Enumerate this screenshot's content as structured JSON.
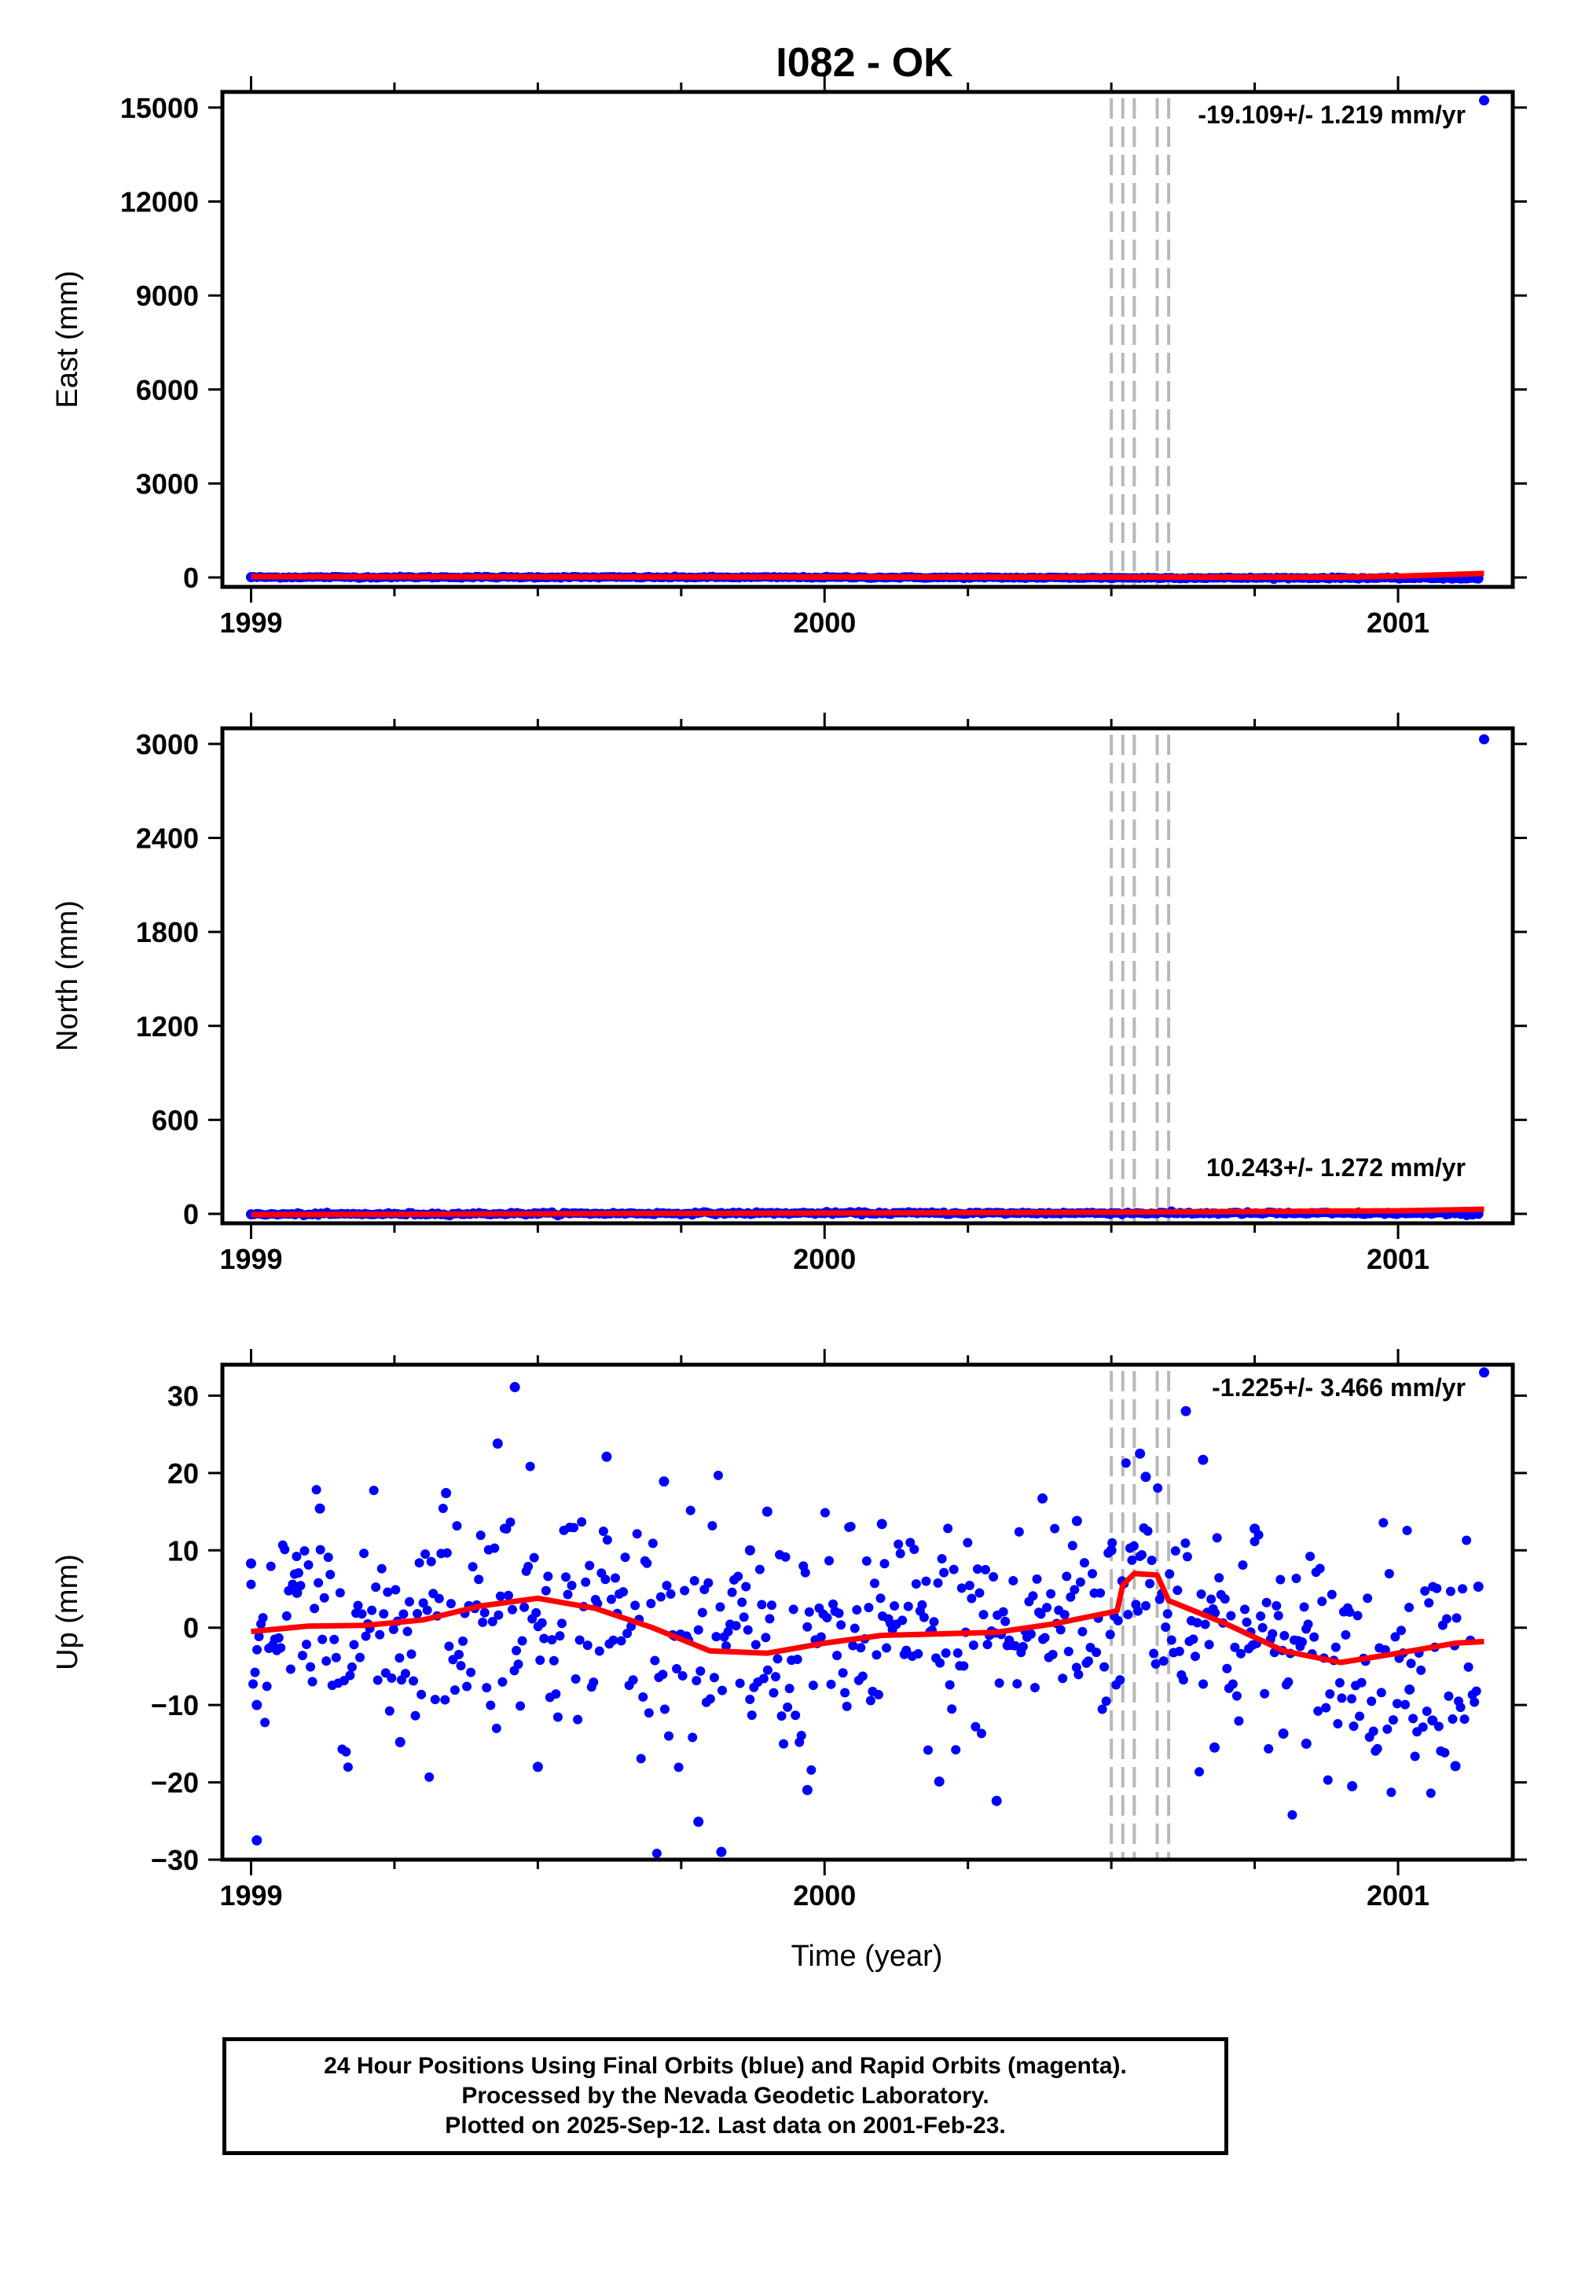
{
  "title": "I082 - OK",
  "footer": {
    "line1": "24 Hour Positions Using Final Orbits (blue) and Rapid Orbits (magenta).",
    "line2": "Processed by the Nevada Geodetic Laboratory.",
    "line3": "Plotted on 2025-Sep-12. Last data on 2001-Feb-23."
  },
  "colors": {
    "points": "#0000ff",
    "model": "#ff0000",
    "steps": "#b8b8b8",
    "frame": "#000000"
  },
  "chart_data": [
    {
      "type": "scatter",
      "title": "I082 - OK",
      "ylabel": "East (mm)",
      "xlabel": "",
      "xlim": [
        1998.95,
        2001.2
      ],
      "ylim": [
        -300,
        15500
      ],
      "xticks": [
        1999,
        2000,
        2001
      ],
      "yticks": [
        0,
        3000,
        6000,
        9000,
        12000,
        15000
      ],
      "rate_label": "-19.109+/- 1.219 mm/yr",
      "steps": [
        2000.5,
        2000.52,
        2000.54,
        2000.58,
        2000.6
      ],
      "model": {
        "x": [
          1999.0,
          1999.5,
          2000.0,
          2000.5,
          2000.9,
          2001.0,
          2001.15
        ],
        "y": [
          25,
          20,
          15,
          10,
          10,
          40,
          130
        ]
      },
      "points": {
        "x": [
          1999.0,
          1999.5,
          2000.0,
          2000.5,
          2000.9,
          2001.0,
          2001.14,
          2001.15
        ],
        "y": [
          10,
          10,
          5,
          -10,
          -15,
          -20,
          -30,
          15230
        ]
      }
    },
    {
      "type": "scatter",
      "ylabel": "North (mm)",
      "xlabel": "",
      "xlim": [
        1998.95,
        2001.2
      ],
      "ylim": [
        -60,
        3100
      ],
      "xticks": [
        1999,
        2000,
        2001
      ],
      "yticks": [
        0,
        600,
        1200,
        1800,
        2400,
        3000
      ],
      "rate_label": "10.243+/- 1.272 mm/yr",
      "steps": [
        2000.5,
        2000.52,
        2000.54,
        2000.58,
        2000.6
      ],
      "model": {
        "x": [
          1999.0,
          1999.5,
          2000.0,
          2000.5,
          2001.0,
          2001.15
        ],
        "y": [
          -5,
          0,
          5,
          10,
          20,
          30
        ]
      },
      "points": {
        "x": [
          1999.0,
          1999.5,
          2000.0,
          2000.5,
          2001.0,
          2001.14,
          2001.15
        ],
        "y": [
          -3,
          2,
          5,
          5,
          3,
          0,
          3030
        ]
      }
    },
    {
      "type": "scatter",
      "ylabel": "Up (mm)",
      "xlabel": "Time (year)",
      "xlim": [
        1998.95,
        2001.2
      ],
      "ylim": [
        -30,
        34
      ],
      "xticks": [
        1999,
        2000,
        2001
      ],
      "yticks": [
        -30,
        -20,
        -10,
        0,
        10,
        20,
        30
      ],
      "rate_label": "-1.225+/- 3.466 mm/yr",
      "steps": [
        2000.5,
        2000.52,
        2000.54,
        2000.58,
        2000.6
      ],
      "model": {
        "x": [
          1999.0,
          1999.1,
          1999.2,
          1999.3,
          1999.4,
          1999.5,
          1999.6,
          1999.7,
          1999.8,
          1999.9,
          2000.0,
          2000.1,
          2000.2,
          2000.3,
          2000.4,
          2000.5,
          2000.51,
          2000.52,
          2000.54,
          2000.58,
          2000.6,
          2000.7,
          2000.8,
          2000.9,
          2001.0,
          2001.1,
          2001.15
        ],
        "y": [
          -0.5,
          0.2,
          0.3,
          1.0,
          2.8,
          3.8,
          2.5,
          0,
          -3.0,
          -3.3,
          -2.0,
          -1.0,
          -0.8,
          -0.6,
          0.5,
          2.0,
          2.2,
          5.5,
          7.0,
          6.8,
          3.5,
          0.5,
          -3.0,
          -4.5,
          -3.3,
          -2.0,
          -1.8
        ]
      },
      "points": {
        "x": [
          1999.0,
          1999.01,
          1999.01,
          1999.08,
          1999.12,
          1999.26,
          1999.34,
          1999.43,
          1999.46,
          1999.5,
          1999.62,
          1999.72,
          1999.78,
          1999.82,
          1999.87,
          1999.9,
          1999.97,
          2000.1,
          2000.2,
          2000.3,
          2000.38,
          2000.44,
          2000.5,
          2000.55,
          2000.56,
          2000.63,
          2000.66,
          2000.68,
          2000.75,
          2000.8,
          2000.84,
          2000.92,
          2001.02,
          2001.06,
          2001.1,
          2001.14,
          2001.15
        ],
        "y": [
          8.3,
          -27.5,
          -10,
          4.5,
          15.4,
          -14.8,
          17.4,
          23.8,
          31.1,
          -18,
          22.1,
          18.9,
          -25.1,
          -29,
          10,
          15,
          -21,
          13.4,
          -19.9,
          -22.4,
          16.7,
          13.8,
          10,
          22.5,
          19.5,
          28,
          21.7,
          -15.5,
          12.8,
          -13.7,
          -15,
          -20.5,
          -8,
          -12,
          -17.9,
          5.3,
          33
        ],
        "density": 620
      }
    }
  ]
}
